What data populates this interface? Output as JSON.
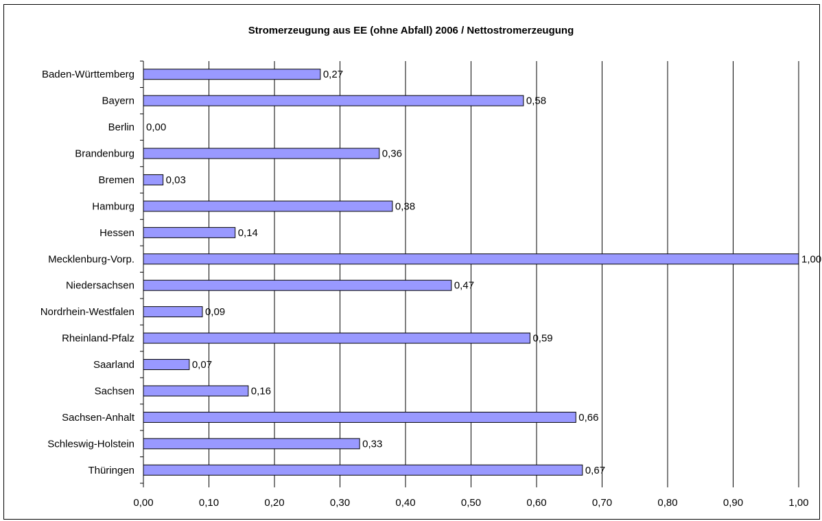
{
  "chart_data": {
    "type": "bar",
    "orientation": "horizontal",
    "title": "Stromerzeugung aus EE (ohne Abfall) 2006 / Nettostromerzeugung",
    "categories": [
      "Baden-Württemberg",
      "Bayern",
      "Berlin",
      "Brandenburg",
      "Bremen",
      "Hamburg",
      "Hessen",
      "Mecklenburg-Vorp.",
      "Niedersachsen",
      "Nordrhein-Westfalen",
      "Rheinland-Pfalz",
      "Saarland",
      "Sachsen",
      "Sachsen-Anhalt",
      "Schleswig-Holstein",
      "Thüringen"
    ],
    "values": [
      0.27,
      0.58,
      0.0,
      0.36,
      0.03,
      0.38,
      0.14,
      1.0,
      0.47,
      0.09,
      0.59,
      0.07,
      0.16,
      0.66,
      0.33,
      0.67
    ],
    "value_labels": [
      "0,27",
      "0,58",
      "0,00",
      "0,36",
      "0,03",
      "0,38",
      "0,14",
      "1,00",
      "0,47",
      "0,09",
      "0,59",
      "0,07",
      "0,16",
      "0,66",
      "0,33",
      "0,67"
    ],
    "x_ticks": [
      0,
      0.1,
      0.2,
      0.3,
      0.4,
      0.5,
      0.6,
      0.7,
      0.8,
      0.9,
      1.0
    ],
    "x_tick_labels": [
      "0,00",
      "0,10",
      "0,20",
      "0,30",
      "0,40",
      "0,50",
      "0,60",
      "0,70",
      "0,80",
      "0,90",
      "1,00"
    ],
    "xlim": [
      0,
      1.0
    ],
    "xlabel": "",
    "ylabel": "",
    "grid": "vertical",
    "legend": "none",
    "bar_color": "#9999FF",
    "bar_edge_color": "#000000"
  }
}
